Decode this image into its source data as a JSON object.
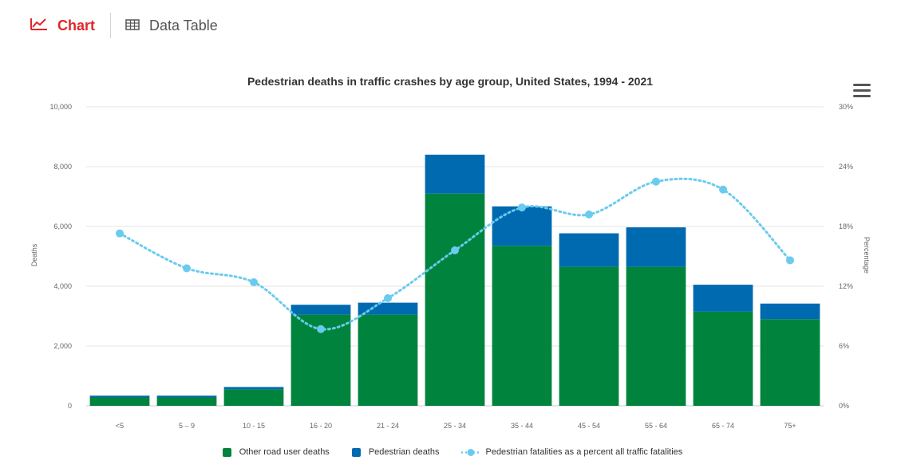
{
  "tabs": {
    "chart_label": "Chart",
    "table_label": "Data Table"
  },
  "colors": {
    "other": "#00843d",
    "pedestrian": "#006ab0",
    "percent_line": "#6acbef",
    "active_tab": "#e0262b",
    "grid": "#e6e6e6"
  },
  "chart_data": {
    "type": "bar",
    "stacked": true,
    "title": "Pedestrian deaths in traffic crashes by age group, United States, 1994 - 2021",
    "ylabel": "Deaths",
    "y2label": "Percentage",
    "ylim": [
      0,
      10000
    ],
    "y2lim": [
      0,
      30
    ],
    "y_ticks": [
      "0",
      "2,000",
      "4,000",
      "6,000",
      "8,000",
      "10,000"
    ],
    "y2_ticks": [
      "0%",
      "6%",
      "12%",
      "18%",
      "24%",
      "30%"
    ],
    "grid": true,
    "legend_position": "bottom-center",
    "categories": [
      "<5",
      "5 – 9",
      "10 - 15",
      "16 - 20",
      "21 - 24",
      "25 - 34",
      "35 - 44",
      "45 - 54",
      "55 - 64",
      "65 - 74",
      "75+"
    ],
    "series": [
      {
        "name": "Other road user deaths",
        "type": "bar",
        "values": [
          280,
          280,
          550,
          3050,
          3050,
          7100,
          5350,
          4650,
          4650,
          3150,
          2900
        ]
      },
      {
        "name": "Pedestrian deaths",
        "type": "bar",
        "values": [
          60,
          60,
          80,
          330,
          400,
          1300,
          1320,
          1120,
          1320,
          900,
          520
        ]
      },
      {
        "name": "Pedestrian fatalities as a percent all traffic fatalities",
        "type": "line",
        "axis": "y2",
        "values": [
          17.3,
          13.8,
          12.4,
          7.7,
          10.8,
          15.6,
          19.9,
          19.2,
          22.5,
          21.7,
          14.6
        ]
      }
    ]
  }
}
